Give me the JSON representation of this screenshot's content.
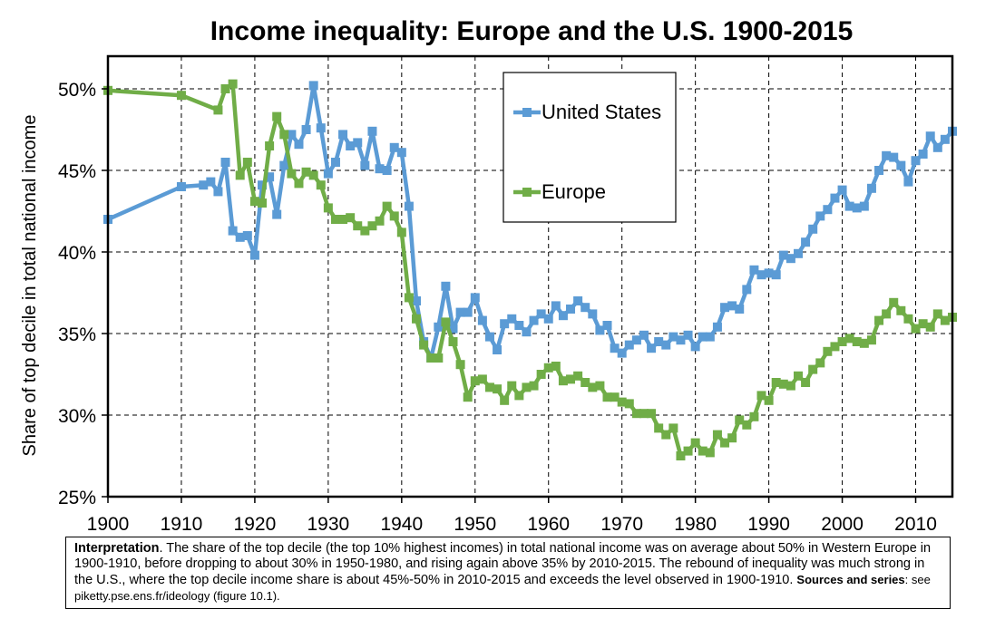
{
  "chart_data": {
    "type": "line",
    "title": "Income inequality: Europe and the U.S. 1900-2015",
    "xlabel": "",
    "ylabel": "Share of top decile in total national income",
    "xlim": [
      1900,
      2015
    ],
    "ylim": [
      25,
      52
    ],
    "x_ticks": [
      "1900",
      "1910",
      "1920",
      "1930",
      "1940",
      "1950",
      "1960",
      "1970",
      "1980",
      "1990",
      "2000",
      "2010"
    ],
    "y_ticks": [
      "25%",
      "30%",
      "35%",
      "40%",
      "45%",
      "50%"
    ],
    "grid": "dashed vertical and horizontal",
    "legend_position": "top-center",
    "series": [
      {
        "name": "United States",
        "color": "#5b9bd5",
        "points": [
          [
            1900,
            42.0
          ],
          [
            1910,
            44.0
          ],
          [
            1913,
            44.1
          ],
          [
            1914,
            44.3
          ],
          [
            1915,
            43.7
          ],
          [
            1916,
            45.5
          ],
          [
            1917,
            41.3
          ],
          [
            1918,
            40.9
          ],
          [
            1919,
            41.0
          ],
          [
            1920,
            39.8
          ],
          [
            1921,
            44.1
          ],
          [
            1922,
            44.6
          ],
          [
            1923,
            42.3
          ],
          [
            1924,
            45.3
          ],
          [
            1925,
            47.2
          ],
          [
            1926,
            46.6
          ],
          [
            1927,
            47.5
          ],
          [
            1928,
            50.2
          ],
          [
            1929,
            47.6
          ],
          [
            1930,
            44.8
          ],
          [
            1931,
            45.5
          ],
          [
            1932,
            47.2
          ],
          [
            1933,
            46.5
          ],
          [
            1934,
            46.7
          ],
          [
            1935,
            45.3
          ],
          [
            1936,
            47.4
          ],
          [
            1937,
            45.1
          ],
          [
            1938,
            45.0
          ],
          [
            1939,
            46.4
          ],
          [
            1940,
            46.1
          ],
          [
            1941,
            42.8
          ],
          [
            1942,
            37.0
          ],
          [
            1943,
            34.5
          ],
          [
            1944,
            33.5
          ],
          [
            1945,
            35.4
          ],
          [
            1946,
            37.9
          ],
          [
            1947,
            35.3
          ],
          [
            1948,
            36.3
          ],
          [
            1949,
            36.3
          ],
          [
            1950,
            37.2
          ],
          [
            1951,
            35.8
          ],
          [
            1952,
            34.8
          ],
          [
            1953,
            34.0
          ],
          [
            1954,
            35.6
          ],
          [
            1955,
            35.9
          ],
          [
            1956,
            35.5
          ],
          [
            1957,
            35.1
          ],
          [
            1958,
            35.8
          ],
          [
            1959,
            36.2
          ],
          [
            1960,
            35.9
          ],
          [
            1961,
            36.7
          ],
          [
            1962,
            36.1
          ],
          [
            1963,
            36.5
          ],
          [
            1964,
            37.0
          ],
          [
            1965,
            36.6
          ],
          [
            1966,
            36.2
          ],
          [
            1967,
            35.2
          ],
          [
            1968,
            35.5
          ],
          [
            1969,
            34.1
          ],
          [
            1970,
            33.8
          ],
          [
            1971,
            34.3
          ],
          [
            1972,
            34.6
          ],
          [
            1973,
            34.9
          ],
          [
            1974,
            34.1
          ],
          [
            1975,
            34.5
          ],
          [
            1976,
            34.3
          ],
          [
            1977,
            34.8
          ],
          [
            1978,
            34.6
          ],
          [
            1979,
            34.9
          ],
          [
            1980,
            34.2
          ],
          [
            1981,
            34.8
          ],
          [
            1982,
            34.8
          ],
          [
            1983,
            35.4
          ],
          [
            1984,
            36.6
          ],
          [
            1985,
            36.7
          ],
          [
            1986,
            36.5
          ],
          [
            1987,
            37.7
          ],
          [
            1988,
            38.9
          ],
          [
            1989,
            38.6
          ],
          [
            1990,
            38.7
          ],
          [
            1991,
            38.6
          ],
          [
            1992,
            39.8
          ],
          [
            1993,
            39.6
          ],
          [
            1994,
            39.9
          ],
          [
            1995,
            40.6
          ],
          [
            1996,
            41.4
          ],
          [
            1997,
            42.2
          ],
          [
            1998,
            42.6
          ],
          [
            1999,
            43.3
          ],
          [
            2000,
            43.8
          ],
          [
            2001,
            42.8
          ],
          [
            2002,
            42.7
          ],
          [
            2003,
            42.8
          ],
          [
            2004,
            43.9
          ],
          [
            2005,
            45.0
          ],
          [
            2006,
            45.9
          ],
          [
            2007,
            45.8
          ],
          [
            2008,
            45.3
          ],
          [
            2009,
            44.3
          ],
          [
            2010,
            45.6
          ],
          [
            2011,
            46.0
          ],
          [
            2012,
            47.1
          ],
          [
            2013,
            46.4
          ],
          [
            2014,
            46.9
          ],
          [
            2015,
            47.4
          ]
        ]
      },
      {
        "name": "Europe",
        "color": "#70ad47",
        "points": [
          [
            1900,
            49.9
          ],
          [
            1910,
            49.6
          ],
          [
            1915,
            48.7
          ],
          [
            1916,
            50.0
          ],
          [
            1917,
            50.3
          ],
          [
            1918,
            44.7
          ],
          [
            1919,
            45.5
          ],
          [
            1920,
            43.1
          ],
          [
            1921,
            43.0
          ],
          [
            1922,
            46.5
          ],
          [
            1923,
            48.3
          ],
          [
            1924,
            47.2
          ],
          [
            1925,
            44.8
          ],
          [
            1926,
            44.2
          ],
          [
            1927,
            44.9
          ],
          [
            1928,
            44.7
          ],
          [
            1929,
            44.1
          ],
          [
            1930,
            42.7
          ],
          [
            1931,
            42.0
          ],
          [
            1932,
            42.0
          ],
          [
            1933,
            42.1
          ],
          [
            1934,
            41.6
          ],
          [
            1935,
            41.3
          ],
          [
            1936,
            41.6
          ],
          [
            1937,
            41.9
          ],
          [
            1938,
            42.8
          ],
          [
            1939,
            42.2
          ],
          [
            1940,
            41.2
          ],
          [
            1941,
            37.2
          ],
          [
            1942,
            35.9
          ],
          [
            1943,
            34.3
          ],
          [
            1944,
            33.5
          ],
          [
            1945,
            33.5
          ],
          [
            1946,
            35.7
          ],
          [
            1947,
            34.5
          ],
          [
            1948,
            33.1
          ],
          [
            1949,
            31.1
          ],
          [
            1950,
            32.1
          ],
          [
            1951,
            32.2
          ],
          [
            1952,
            31.7
          ],
          [
            1953,
            31.6
          ],
          [
            1954,
            30.9
          ],
          [
            1955,
            31.8
          ],
          [
            1956,
            31.2
          ],
          [
            1957,
            31.7
          ],
          [
            1958,
            31.8
          ],
          [
            1959,
            32.5
          ],
          [
            1960,
            32.9
          ],
          [
            1961,
            33.0
          ],
          [
            1962,
            32.1
          ],
          [
            1963,
            32.2
          ],
          [
            1964,
            32.4
          ],
          [
            1965,
            32.0
          ],
          [
            1966,
            31.7
          ],
          [
            1967,
            31.8
          ],
          [
            1968,
            31.1
          ],
          [
            1969,
            31.1
          ],
          [
            1970,
            30.8
          ],
          [
            1971,
            30.7
          ],
          [
            1972,
            30.1
          ],
          [
            1973,
            30.1
          ],
          [
            1974,
            30.1
          ],
          [
            1975,
            29.2
          ],
          [
            1976,
            28.8
          ],
          [
            1977,
            29.2
          ],
          [
            1978,
            27.5
          ],
          [
            1979,
            27.8
          ],
          [
            1980,
            28.3
          ],
          [
            1981,
            27.8
          ],
          [
            1982,
            27.7
          ],
          [
            1983,
            28.8
          ],
          [
            1984,
            28.3
          ],
          [
            1985,
            28.6
          ],
          [
            1986,
            29.7
          ],
          [
            1987,
            29.4
          ],
          [
            1988,
            29.9
          ],
          [
            1989,
            31.2
          ],
          [
            1990,
            30.9
          ],
          [
            1991,
            32.0
          ],
          [
            1992,
            31.9
          ],
          [
            1993,
            31.8
          ],
          [
            1994,
            32.4
          ],
          [
            1995,
            32.0
          ],
          [
            1996,
            32.8
          ],
          [
            1997,
            33.2
          ],
          [
            1998,
            33.9
          ],
          [
            1999,
            34.2
          ],
          [
            2000,
            34.5
          ],
          [
            2001,
            34.7
          ],
          [
            2002,
            34.5
          ],
          [
            2003,
            34.4
          ],
          [
            2004,
            34.6
          ],
          [
            2005,
            35.8
          ],
          [
            2006,
            36.2
          ],
          [
            2007,
            36.9
          ],
          [
            2008,
            36.4
          ],
          [
            2009,
            35.9
          ],
          [
            2010,
            35.3
          ],
          [
            2011,
            35.6
          ],
          [
            2012,
            35.4
          ],
          [
            2013,
            36.2
          ],
          [
            2014,
            35.8
          ],
          [
            2015,
            36.0
          ]
        ]
      }
    ]
  },
  "note": {
    "lead": "Interpretation",
    "body": ". The share of the top decile (the top 10% highest incomes) in total national income was on average about 50% in Western Europe in 1900-1910, before dropping to about 30% in 1950-1980, and rising again above 35% by 2010-2015. The rebound of inequality was much strong in the U.S., where the top decile income share is about 45%-50% in 2010-2015 and exceeds the level observed in 1900-1910. ",
    "sources_label": "Sources and series",
    "sources_text": ": see piketty.pse.ens.fr/ideology (figure 10.1)."
  }
}
